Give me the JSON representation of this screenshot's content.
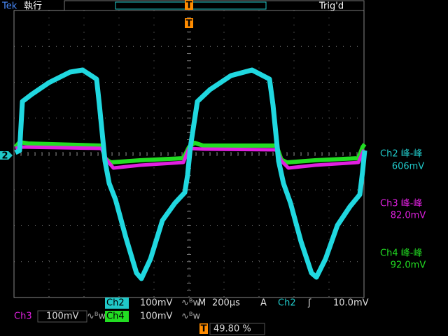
{
  "header": {
    "brand": "Tek",
    "status": "執行",
    "trigger_state": "Trig'd",
    "trigger_marker": "T"
  },
  "channel_marker": "2",
  "measurements": [
    {
      "label": "Ch2 峰-峰",
      "value": "606mV"
    },
    {
      "label": "Ch3 峰-峰",
      "value": "82.0mV"
    },
    {
      "label": "Ch4 峰-峰",
      "value": "92.0mV"
    }
  ],
  "footer": {
    "ch2": {
      "name": "Ch2",
      "scale": "100mV"
    },
    "timebase": {
      "label": "M",
      "value": "200µs"
    },
    "trigger": {
      "mode": "A",
      "source": "Ch2",
      "level": "10.0mV"
    },
    "ch3": {
      "name": "Ch3",
      "scale": "100mV"
    },
    "ch4": {
      "name": "Ch4",
      "scale": "100mV"
    },
    "position": {
      "marker": "T",
      "value": "49.80 %"
    }
  }
}
